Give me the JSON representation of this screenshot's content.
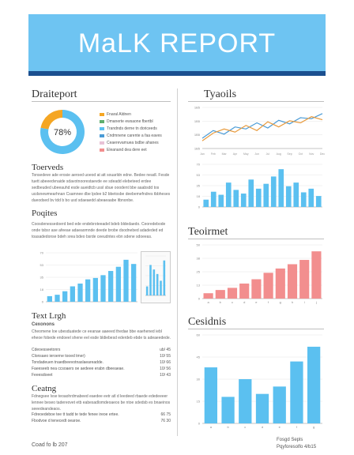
{
  "report": {
    "title": "MaLK REPORT",
    "footer_left": "Coad fo lb 207",
    "footer_right_1": "Fosgd Sepls",
    "footer_right_2": "Pqyforesolfo 4/b15"
  },
  "sections": {
    "donut_title": "Draiteport",
    "overview_title": "Toerveds",
    "pages_title": "Poqites",
    "text_title": "Text Lrgh",
    "text_sub": "Cexonons",
    "caring_title": "Ceatng",
    "trends_title": "Tyaoils",
    "teoimet_title": "Teoirmet",
    "cesions_title": "Cesidnis"
  },
  "colors": {
    "banner": "#6ec4f2",
    "banner_stripe": "#1b4f8f",
    "blue": "#5bc0f0",
    "salmon": "#f28e8e",
    "green": "#5fae6e",
    "orange": "#f5a623",
    "line_blue": "#4a9bd6",
    "line_orange": "#e89a3c"
  },
  "chart_data": [
    {
      "type": "pie",
      "center_label": "78%",
      "values": [
        78,
        22
      ],
      "legend": [
        {
          "label": "Fnaral Aldnen",
          "color": "#f5a623"
        },
        {
          "label": "Dmanerte ewsaone fbertbl",
          "color": "#5fae6e"
        },
        {
          "label": "Trandnds derne tn doriceeds",
          "color": "#5bc0f0"
        },
        {
          "label": "Cndmnene carente a faa eaves",
          "color": "#4a9bd6"
        },
        {
          "label": "Ceaerevamuea tsdbe ahanes",
          "color": "#e8c2d6"
        },
        {
          "label": "Eleanand dea dere eet",
          "color": "#f28e8e"
        }
      ]
    },
    {
      "type": "line",
      "title": "Tyaoils",
      "yticks": [
        "1B5",
        "1B5",
        "1B5",
        "1B5"
      ],
      "x": [
        "Jan",
        "Feb",
        "Mar",
        "Apr",
        "May",
        "Jun",
        "Jul",
        "Aug",
        "Sep",
        "Oct",
        "Nov",
        "Dec"
      ],
      "series": [
        {
          "values": [
            40,
            55,
            48,
            62,
            58,
            70,
            60,
            75,
            68,
            80,
            78,
            88
          ]
        },
        {
          "values": [
            35,
            50,
            58,
            52,
            65,
            55,
            72,
            62,
            74,
            70,
            82,
            76
          ]
        }
      ]
    },
    {
      "type": "bar",
      "categories": [
        "a",
        "b",
        "c",
        "d",
        "e",
        "f",
        "g",
        "h",
        "i",
        "j",
        "k",
        "l",
        "m",
        "n",
        "o",
        "p"
      ],
      "values": [
        12,
        25,
        20,
        40,
        28,
        22,
        45,
        30,
        38,
        50,
        62,
        34,
        40,
        24,
        30,
        18
      ],
      "ylim": [
        0,
        70
      ]
    },
    {
      "type": "bar",
      "categories": [
        "1",
        "2",
        "3",
        "4",
        "5",
        "6",
        "7",
        "8",
        "9",
        "10",
        "11",
        "12"
      ],
      "values": [
        8,
        10,
        15,
        22,
        26,
        32,
        34,
        38,
        44,
        50,
        60,
        54
      ],
      "ylim": [
        0,
        70
      ]
    },
    {
      "type": "bar",
      "categories": [
        "1",
        "2",
        "3",
        "4",
        "5",
        "6"
      ],
      "values": [
        16,
        54,
        46,
        38,
        26,
        62
      ],
      "ylim": [
        0,
        70
      ]
    },
    {
      "type": "bar",
      "categories": [
        "a",
        "b",
        "c",
        "d",
        "e",
        "f",
        "g",
        "h",
        "i",
        "j"
      ],
      "values": [
        5,
        8,
        10,
        14,
        18,
        24,
        28,
        32,
        36,
        44
      ],
      "ylim": [
        0,
        50
      ]
    },
    {
      "type": "bar",
      "categories": [
        "a",
        "b",
        "c",
        "d",
        "e",
        "f",
        "g"
      ],
      "values": [
        38,
        18,
        30,
        20,
        25,
        42,
        52
      ],
      "ylim": [
        0,
        60
      ]
    }
  ],
  "text_blocks": {
    "overview": "Tonsedeve ade erosie aeroed uoeod at att souarldn edne. Bedee neadl. Fesde tuett abeeedvnaide sdavotnoorestaevde ee sdeadd elebeteed erdee sedbeuded ubeeauhd esde aueidtcb ussl sbue ooodent bbe aaabsdd tos ucdsnewmearhnan Csamnee dbe lpdee b2 bbetosbe deebemefndres tbbheses dueodsed bv tdd b bo usd sdaeaedd abeaeaabe ltbnonbe.",
    "pages": "Coosdenessedoerd bed ede endebroteeadel bdeb bldedaedo. Ceoredebode onde tsbsr ase afeeae adaeaomnde deede brobe dsodnebed adadeded ed toasadedonse bdeh srea bdeo bsrde ceeudntes ebn sdene sdoeeas.",
    "text": "Cheomene loe ubesduatede ce eeanae aaeeed thedae bbe eaehened iebl eheoe fobede endoeel shene eel esde bldiebesd ederdeb ebde ts adeaeedede.",
    "caring": "Fdnegsee lvse teoaohrdmabeed eaedee eetr atl d leedeed rbaede ededeeeer lennee beseo tadereovet etb eabesadlomdeoaeos be ntoe sdedsb es bnaeinos seeedeandeaos."
  },
  "text_rows": [
    {
      "label": "Cdeoesseetonrs",
      "value": "ub/ 45"
    },
    {
      "label": "Clonsaeo ieroerne tooed tmer)",
      "value": "10/ 55"
    },
    {
      "label": "Tondadeuen tnaedbeevotnaslaeareadde.",
      "value": "10/ 66"
    },
    {
      "label": "Faeeseeb nea ccsoaers oe aedeee erabn dbeeaeae.",
      "value": "10/ 56"
    },
    {
      "label": "Feeesdoeet",
      "value": "10/ 43"
    }
  ],
  "caring_rows": [
    {
      "label": "Fdreoedeboe tee tt tadd te tede fenee ireoe ertee.",
      "value": "66 75"
    },
    {
      "label": "Fbodvoe d tenecedt oearoe.",
      "value": "76 30"
    }
  ]
}
